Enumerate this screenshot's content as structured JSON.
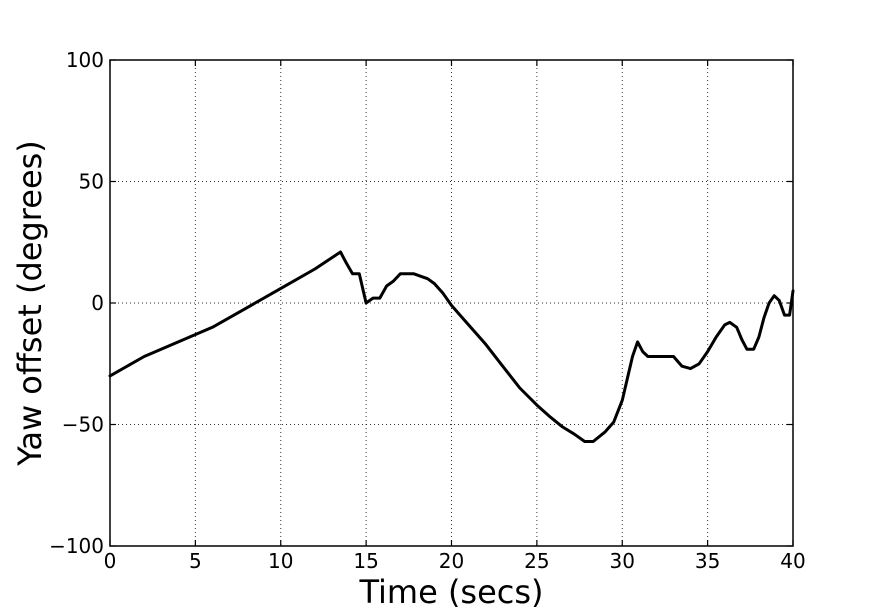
{
  "chart_data": {
    "type": "line",
    "title": "",
    "xlabel": "Time (secs)",
    "ylabel": "Yaw offset (degrees)",
    "xlim": [
      0,
      40
    ],
    "ylim": [
      -100,
      100
    ],
    "xticks": [
      0,
      5,
      10,
      15,
      20,
      25,
      30,
      35,
      40
    ],
    "yticks": [
      100,
      50,
      0,
      -50,
      -100
    ],
    "xtick_labels": [
      "0",
      "5",
      "10",
      "15",
      "20",
      "25",
      "30",
      "35",
      "40"
    ],
    "ytick_labels": [
      "100",
      "50",
      "0",
      "−50",
      "−100"
    ],
    "grid": true,
    "series": [
      {
        "color": "#000000",
        "x": [
          0,
          2,
          4,
          6,
          8,
          10,
          12,
          13.5,
          13.8,
          14.2,
          14.6,
          15.0,
          15.4,
          15.8,
          16.2,
          16.6,
          17.0,
          17.4,
          17.8,
          18.2,
          18.6,
          19.0,
          19.5,
          20.0,
          20.5,
          21.0,
          22.0,
          23.0,
          24.0,
          25.0,
          25.8,
          26.5,
          27.2,
          27.8,
          28.3,
          29.0,
          29.5,
          30.0,
          30.3,
          30.6,
          30.9,
          31.2,
          31.5,
          32.0,
          32.5,
          33.0,
          33.5,
          34.0,
          34.5,
          35.0,
          35.5,
          36.0,
          36.3,
          36.7,
          37.0,
          37.3,
          37.7,
          38.0,
          38.3,
          38.6,
          38.9,
          39.2,
          39.5,
          39.8,
          40.0
        ],
        "values": [
          -30,
          -22,
          -16,
          -10,
          -2,
          6,
          14,
          21,
          17,
          12,
          12,
          0,
          2,
          2,
          7,
          9,
          12,
          12,
          12,
          11,
          10,
          8,
          4,
          -1,
          -5,
          -9,
          -17,
          -26,
          -35,
          -42,
          -47,
          -51,
          -54,
          -57,
          -57,
          -53,
          -49,
          -40,
          -31,
          -22,
          -16,
          -20,
          -22,
          -22,
          -22,
          -22,
          -26,
          -27,
          -25,
          -20,
          -14,
          -9,
          -8,
          -10,
          -15,
          -19,
          -19,
          -14,
          -6,
          0,
          3,
          1,
          -5,
          -5,
          5
        ]
      }
    ]
  }
}
